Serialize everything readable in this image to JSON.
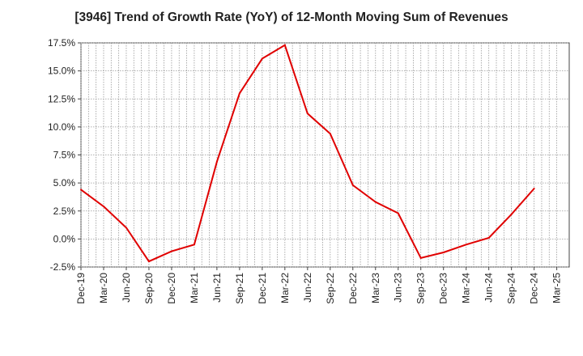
{
  "chart_data": {
    "type": "line",
    "title": "[3946]  Trend of Growth Rate (YoY) of 12-Month Moving Sum of Revenues",
    "xlabel": "",
    "ylabel": "",
    "ylim": [
      -2.5,
      17.5
    ],
    "yticks": [
      "-2.5%",
      "0.0%",
      "2.5%",
      "5.0%",
      "7.5%",
      "10.0%",
      "12.5%",
      "15.0%",
      "17.5%"
    ],
    "ytick_values": [
      -2.5,
      0,
      2.5,
      5,
      7.5,
      10,
      12.5,
      15,
      17.5
    ],
    "xticks": [
      "Dec-19",
      "Mar-20",
      "Jun-20",
      "Sep-20",
      "Dec-20",
      "Mar-21",
      "Jun-21",
      "Sep-21",
      "Dec-21",
      "Mar-22",
      "Jun-22",
      "Sep-22",
      "Dec-22",
      "Mar-23",
      "Jun-23",
      "Sep-23",
      "Dec-23",
      "Mar-24",
      "Jun-24",
      "Sep-24",
      "Dec-24",
      "Mar-25"
    ],
    "grid": true,
    "series": [
      {
        "color": "#e00000",
        "x": [
          "Dec-19",
          "Mar-20",
          "Jun-20",
          "Sep-20",
          "Dec-20",
          "Mar-21",
          "Jun-21",
          "Sep-21",
          "Dec-21",
          "Mar-22",
          "Jun-22",
          "Sep-22",
          "Dec-22",
          "Mar-23",
          "Jun-23",
          "Sep-23",
          "Dec-23",
          "Mar-24",
          "Jun-24",
          "Sep-24",
          "Dec-24"
        ],
        "values": [
          4.4,
          2.9,
          1.0,
          -2.0,
          -1.1,
          -0.5,
          6.9,
          13.0,
          16.1,
          17.3,
          11.2,
          9.4,
          4.8,
          3.3,
          2.3,
          -1.7,
          -1.2,
          -0.5,
          0.1,
          2.2,
          4.5
        ]
      }
    ]
  }
}
